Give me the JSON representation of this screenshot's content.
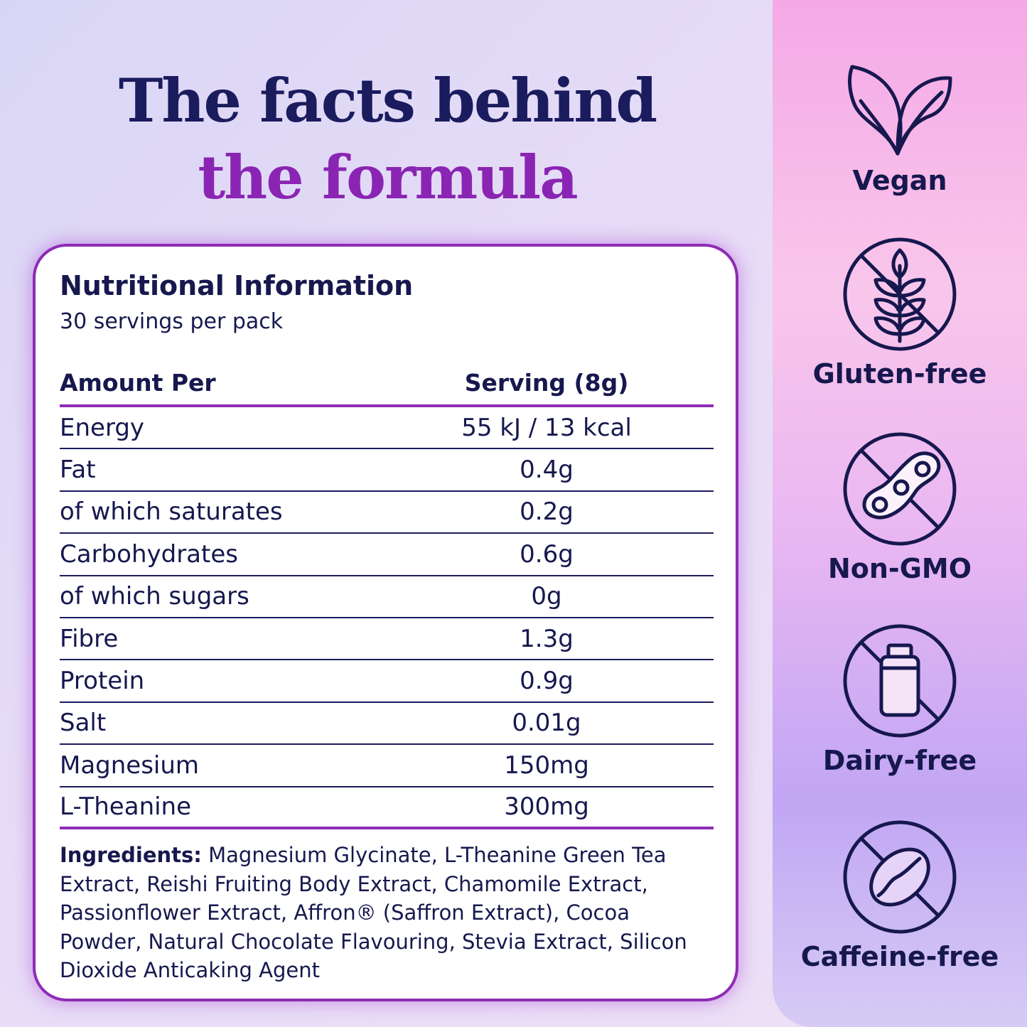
{
  "headline": {
    "line1": "The facts behind",
    "line2": "the formula"
  },
  "nutrition": {
    "title": "Nutritional Information",
    "subtitle": "30 servings per pack",
    "header": {
      "col1": "Amount Per",
      "col2": "Serving (8g)"
    },
    "rows": [
      {
        "name": "Energy",
        "value": "55 kJ / 13 kcal"
      },
      {
        "name": "Fat",
        "value": "0.4g"
      },
      {
        "name": "of which saturates",
        "value": "0.2g"
      },
      {
        "name": "Carbohydrates",
        "value": "0.6g"
      },
      {
        "name": "of which sugars",
        "value": "0g"
      },
      {
        "name": "Fibre",
        "value": "1.3g"
      },
      {
        "name": "Protein",
        "value": "0.9g"
      },
      {
        "name": "Salt",
        "value": "0.01g"
      },
      {
        "name": "Magnesium",
        "value": "150mg"
      },
      {
        "name": "L-Theanine",
        "value": "300mg"
      }
    ],
    "ingredients_label": "Ingredients:",
    "ingredients_text": " Magnesium Glycinate, L-Theanine Green Tea Extract, Reishi Fruiting Body Extract, Chamomile Extract, Passionflower Extract, Affron® (Saffron Extract), Cocoa Powder, Natural Chocolate Flavouring, Stevia Extract, Silicon Dioxide Anticaking Agent"
  },
  "badges": [
    {
      "label": "Vegan",
      "icon": "leaf-icon"
    },
    {
      "label": "Gluten-free",
      "icon": "wheat-crossed-icon"
    },
    {
      "label": "Non-GMO",
      "icon": "soybean-crossed-icon"
    },
    {
      "label": "Dairy-free",
      "icon": "milk-bottle-crossed-icon"
    },
    {
      "label": "Caffeine-free",
      "icon": "coffee-bean-crossed-icon"
    }
  ],
  "colors": {
    "navy": "#16184e",
    "purple": "#8a25b3",
    "card_border": "#8e2bb4"
  }
}
